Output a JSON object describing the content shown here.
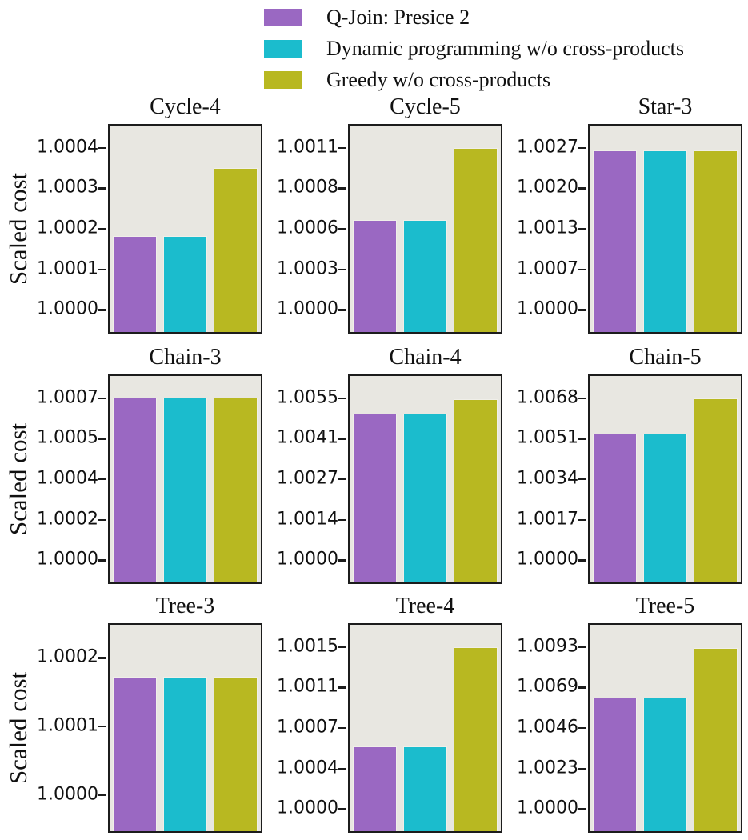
{
  "figure": {
    "background": "#ffffff",
    "plot_background": "#e8e7e1",
    "frame_color": "#1c1c1c",
    "text_color": "#111111",
    "bar_edge_color": "#f0efe9"
  },
  "chart_data": {
    "type": "bar",
    "grid": "3 rows x 3 columns",
    "ylabel": "Scaled cost",
    "legend_position": "top",
    "gridlines": false,
    "series": [
      {
        "key": "qjoin-presice-2",
        "name": "Q-Join: Presice 2",
        "color": "#9a68c2"
      },
      {
        "key": "dynamic-programming-wo-cross-products",
        "name": "Dynamic programming w/o cross-products",
        "color": "#1bbccd"
      },
      {
        "key": "greedy-wo-cross-products",
        "name": "Greedy w/o cross-products",
        "color": "#b8b821"
      }
    ],
    "subplots": [
      {
        "title": "Cycle-4",
        "tick_labels": [
          "1.0000",
          "1.0001",
          "1.0002",
          "1.0003",
          "1.0004"
        ],
        "tick_values": [
          1.0,
          1.0001,
          1.0002,
          1.0003,
          1.0004
        ],
        "ylim": [
          0.999945,
          1.000455
        ],
        "values": [
          1.000183,
          1.000183,
          1.00035
        ]
      },
      {
        "title": "Cycle-5",
        "tick_labels": [
          "1.0000",
          "1.0003",
          "1.0006",
          "1.0008",
          "1.0011"
        ],
        "tick_values": [
          1.0,
          1.0002825,
          1.000565,
          1.0008475,
          1.00113
        ],
        "ylim": [
          0.999845,
          1.001285
        ],
        "values": [
          1.000625,
          1.000625,
          1.00113
        ]
      },
      {
        "title": "Star-3",
        "tick_labels": [
          "1.0000",
          "1.0007",
          "1.0013",
          "1.0020",
          "1.0027"
        ],
        "tick_values": [
          1.0,
          1.000675,
          1.00135,
          1.002025,
          1.0027
        ],
        "ylim": [
          0.99963,
          1.00307
        ],
        "values": [
          1.002655,
          1.002655,
          1.002655
        ]
      },
      {
        "title": "Chain-3",
        "tick_labels": [
          "1.0000",
          "1.0002",
          "1.0004",
          "1.0005",
          "1.0007"
        ],
        "tick_values": [
          1.0,
          1.000176,
          1.000352,
          1.000528,
          1.000704
        ],
        "ylim": [
          0.999904,
          1.0008
        ],
        "values": [
          1.000705,
          1.000705,
          1.000705
        ]
      },
      {
        "title": "Chain-4",
        "tick_labels": [
          "1.0000",
          "1.0014",
          "1.0027",
          "1.0041",
          "1.0055"
        ],
        "tick_values": [
          1.0,
          1.001375,
          1.00275,
          1.004125,
          1.0055
        ],
        "ylim": [
          0.999245,
          1.006255
        ],
        "values": [
          1.00497,
          1.00497,
          1.00546
        ]
      },
      {
        "title": "Chain-5",
        "tick_labels": [
          "1.0000",
          "1.0017",
          "1.0034",
          "1.0051",
          "1.0068"
        ],
        "tick_values": [
          1.0,
          1.0017,
          1.0034,
          1.0051,
          1.0068
        ],
        "ylim": [
          0.999068,
          1.007732
        ],
        "values": [
          1.00533,
          1.00533,
          1.0068
        ]
      },
      {
        "title": "Tree-3",
        "tick_labels": [
          "1.0000",
          "1.0001",
          "1.0002"
        ],
        "tick_values": [
          1.0,
          1.0001,
          1.0002
        ],
        "ylim": [
          0.999947,
          1.000248
        ],
        "values": [
          1.000172,
          1.000172,
          1.000172
        ]
      },
      {
        "title": "Tree-4",
        "tick_labels": [
          "1.0000",
          "1.0004",
          "1.0007",
          "1.0011",
          "1.0015"
        ],
        "tick_values": [
          1.0,
          1.00037,
          1.00074,
          1.00111,
          1.00148
        ],
        "ylim": [
          0.999797,
          1.001683
        ],
        "values": [
          1.00057,
          1.00057,
          1.00148
        ]
      },
      {
        "title": "Tree-5",
        "tick_labels": [
          "1.0000",
          "1.0023",
          "1.0046",
          "1.0069",
          "1.0093"
        ],
        "tick_values": [
          1.0,
          1.002325,
          1.00465,
          1.006975,
          1.0093
        ],
        "ylim": [
          0.998726,
          1.010574
        ],
        "values": [
          1.0064,
          1.0064,
          1.00925
        ]
      }
    ]
  }
}
